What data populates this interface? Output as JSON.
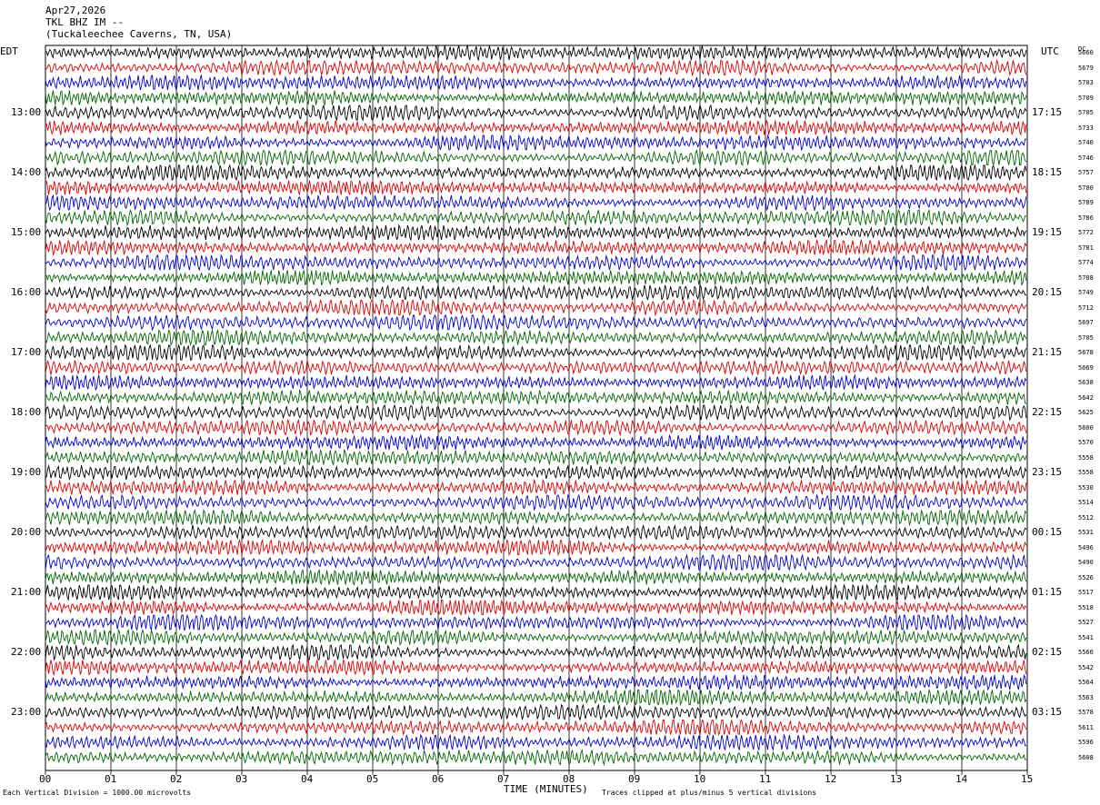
{
  "header": {
    "date": "Apr27,2026",
    "station": "TKL BHZ IM --",
    "location": "(Tuckaleechee Caverns, TN, USA)"
  },
  "axes": {
    "left_label": "EDT",
    "right_label": "UTC",
    "dc_label": "DC",
    "x_label": "TIME (MINUTES)"
  },
  "footer": {
    "scale_note": "Each Vertical Division = 1000.00 microvolts",
    "clip_note": "Traces clipped at plus/minus 5 vertical divisions"
  },
  "colors": {
    "trace_cycle": [
      "#000000",
      "#dd0000",
      "#0000cc",
      "#006600"
    ],
    "grid": "#000000",
    "background": "#ffffff"
  },
  "chart_data": {
    "type": "line",
    "title": "",
    "x_ticks": [
      "00",
      "01",
      "02",
      "03",
      "04",
      "05",
      "06",
      "07",
      "08",
      "09",
      "10",
      "11",
      "12",
      "13",
      "14",
      "15"
    ],
    "xlim": [
      0,
      15
    ],
    "edt_hour_labels": [
      "13:00",
      "14:00",
      "15:00",
      "16:00",
      "17:00",
      "18:00",
      "19:00",
      "20:00",
      "21:00",
      "22:00",
      "23:00"
    ],
    "utc_hour_labels": [
      "17:15",
      "18:15",
      "19:15",
      "20:15",
      "21:15",
      "22:15",
      "23:15",
      "00:15",
      "01:15",
      "02:15",
      "03:15"
    ],
    "dc_offsets": [
      5660,
      5679,
      5703,
      5709,
      5705,
      5733,
      5740,
      5746,
      5757,
      5780,
      5789,
      5786,
      5772,
      5781,
      5774,
      5708,
      5749,
      5712,
      5697,
      5705,
      5678,
      5669,
      5638,
      5642,
      5625,
      5600,
      5570,
      5558,
      5558,
      5530,
      5514,
      5512,
      5531,
      5496,
      5490,
      5526,
      5517,
      5518,
      5527,
      5541,
      5560,
      5542,
      5564,
      5563,
      5578,
      5611,
      5596,
      5608
    ],
    "trace_count": 48,
    "grid": true
  }
}
